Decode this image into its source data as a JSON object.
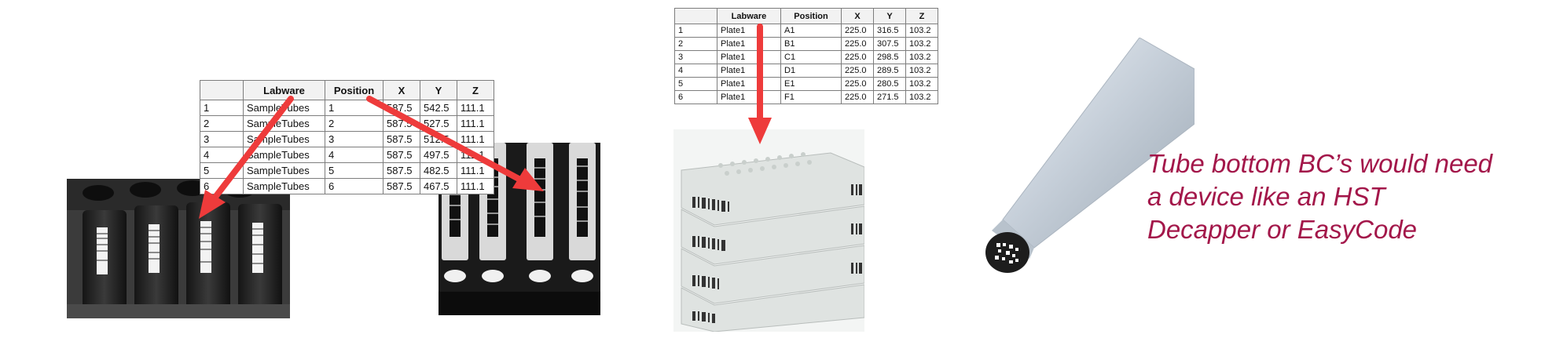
{
  "table_tubes": {
    "headers": [
      "",
      "Labware",
      "Position",
      "X",
      "Y",
      "Z"
    ],
    "rows": [
      [
        "1",
        "SampleTubes",
        "1",
        "587.5",
        "542.5",
        "111.1"
      ],
      [
        "2",
        "SampleTubes",
        "2",
        "587.5",
        "527.5",
        "111.1"
      ],
      [
        "3",
        "SampleTubes",
        "3",
        "587.5",
        "512.5",
        "111.1"
      ],
      [
        "4",
        "SampleTubes",
        "4",
        "587.5",
        "497.5",
        "111.1"
      ],
      [
        "5",
        "SampleTubes",
        "5",
        "587.5",
        "482.5",
        "111.1"
      ],
      [
        "6",
        "SampleTubes",
        "6",
        "587.5",
        "467.5",
        "111.1"
      ]
    ]
  },
  "table_plates": {
    "headers": [
      "",
      "Labware",
      "Position",
      "X",
      "Y",
      "Z"
    ],
    "rows": [
      [
        "1",
        "Plate1",
        "A1",
        "225.0",
        "316.5",
        "103.2"
      ],
      [
        "2",
        "Plate1",
        "B1",
        "225.0",
        "307.5",
        "103.2"
      ],
      [
        "3",
        "Plate1",
        "C1",
        "225.0",
        "298.5",
        "103.2"
      ],
      [
        "4",
        "Plate1",
        "D1",
        "225.0",
        "289.5",
        "103.2"
      ],
      [
        "5",
        "Plate1",
        "E1",
        "225.0",
        "280.5",
        "103.2"
      ],
      [
        "6",
        "Plate1",
        "F1",
        "225.0",
        "271.5",
        "103.2"
      ]
    ]
  },
  "caption": {
    "lines": [
      "Tube bottom BC’s would need",
      "a device like an HST",
      "Decapper or EasyCode"
    ]
  },
  "colors": {
    "arrow": "#ee3b3b",
    "caption": "#a3174a"
  }
}
